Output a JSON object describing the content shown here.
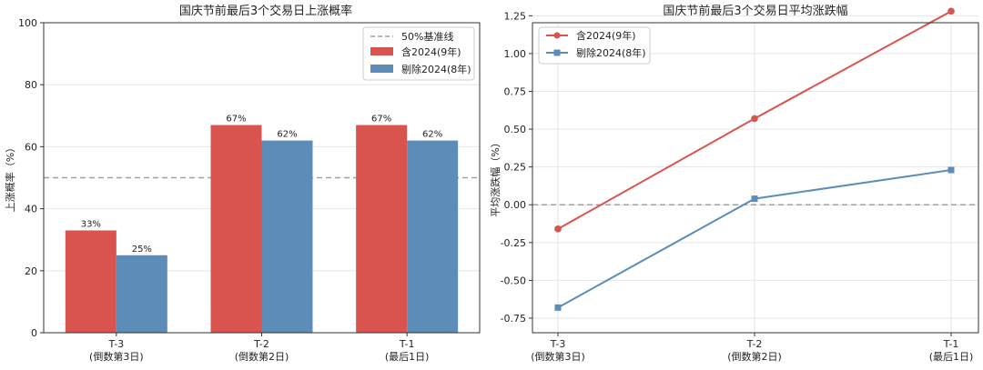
{
  "chart_data": [
    {
      "type": "bar",
      "title": "国庆节前最后3个交易日上涨概率",
      "xlabel": "",
      "ylabel": "上涨概率（%）",
      "ylim": [
        0,
        100
      ],
      "yticks": [
        "0",
        "20",
        "40",
        "60",
        "80",
        "100"
      ],
      "categories": [
        "T-3\n(倒数第3日)",
        "T-2\n(倒数第2日)",
        "T-1\n(最后1日)"
      ],
      "series": [
        {
          "name": "含2024(9年)",
          "values": [
            33,
            67,
            67
          ],
          "labels": [
            "33%",
            "67%",
            "67%"
          ],
          "color": "#d9534f"
        },
        {
          "name": "剔除2024(8年)",
          "values": [
            25,
            62,
            62
          ],
          "labels": [
            "25%",
            "62%",
            "62%"
          ],
          "color": "#5b8db8"
        }
      ],
      "reference_line": {
        "name": "50%基准线",
        "value": 50,
        "color": "#a0a0a0"
      },
      "grid": true,
      "legend": "top-right"
    },
    {
      "type": "line",
      "title": "国庆节前最后3个交易日平均涨跌幅",
      "xlabel": "",
      "ylabel": "平均涨跌幅（%）",
      "ylim": [
        -0.75,
        1.3
      ],
      "yticks": [
        "-0.75",
        "-0.50",
        "-0.25",
        "0.00",
        "0.25",
        "0.50",
        "0.75",
        "1.00",
        "1.25"
      ],
      "categories": [
        "T-3\n(倒数第3日)",
        "T-2\n(倒数第2日)",
        "T-1\n(最后1日)"
      ],
      "series": [
        {
          "name": "含2024(9年)",
          "values": [
            -0.16,
            0.57,
            1.28
          ],
          "marker": "circle",
          "color": "#d9534f"
        },
        {
          "name": "剔除2024(8年)",
          "values": [
            -0.68,
            0.04,
            0.23
          ],
          "marker": "square",
          "color": "#5b8db8"
        }
      ],
      "reference_line": {
        "value": 0,
        "color": "#a0a0a0"
      },
      "grid": true,
      "legend": "top-left"
    }
  ]
}
